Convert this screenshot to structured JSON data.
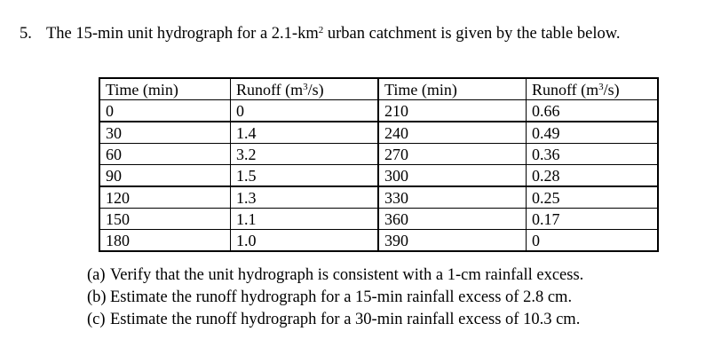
{
  "problem": {
    "number": "5.",
    "text_before": "The 15-min unit hydrograph for a 2.1-km",
    "area_exponent": "2",
    "text_after": " urban catchment is given by the table below."
  },
  "table": {
    "headers": [
      {
        "label": "Time (min)",
        "exp": "",
        "tail": ""
      },
      {
        "label": "Runoff (m",
        "exp": "3",
        "tail": "/s)"
      },
      {
        "label": "Time (min)",
        "exp": "",
        "tail": ""
      },
      {
        "label": "Runoff (m",
        "exp": "3",
        "tail": "/s)"
      }
    ],
    "rows": [
      [
        "0",
        "0",
        "210",
        "0.66"
      ],
      [
        "30",
        "1.4",
        "240",
        "0.49"
      ],
      [
        "60",
        "3.2",
        "270",
        "0.36"
      ],
      [
        "90",
        "1.5",
        "300",
        "0.28"
      ],
      [
        "120",
        "1.3",
        "330",
        "0.25"
      ],
      [
        "150",
        "1.1",
        "360",
        "0.17"
      ],
      [
        "180",
        "1.0",
        "390",
        "0"
      ]
    ]
  },
  "parts": [
    {
      "tag": "(a)",
      "text": "Verify that the unit hydrograph is consistent with a 1-cm rainfall excess."
    },
    {
      "tag": "(b)",
      "text": "Estimate the runoff hydrograph for a 15-min rainfall excess of 2.8 cm."
    },
    {
      "tag": "(c)",
      "text": "Estimate the runoff hydrograph for a 30-min rainfall excess of 10.3 cm."
    }
  ]
}
